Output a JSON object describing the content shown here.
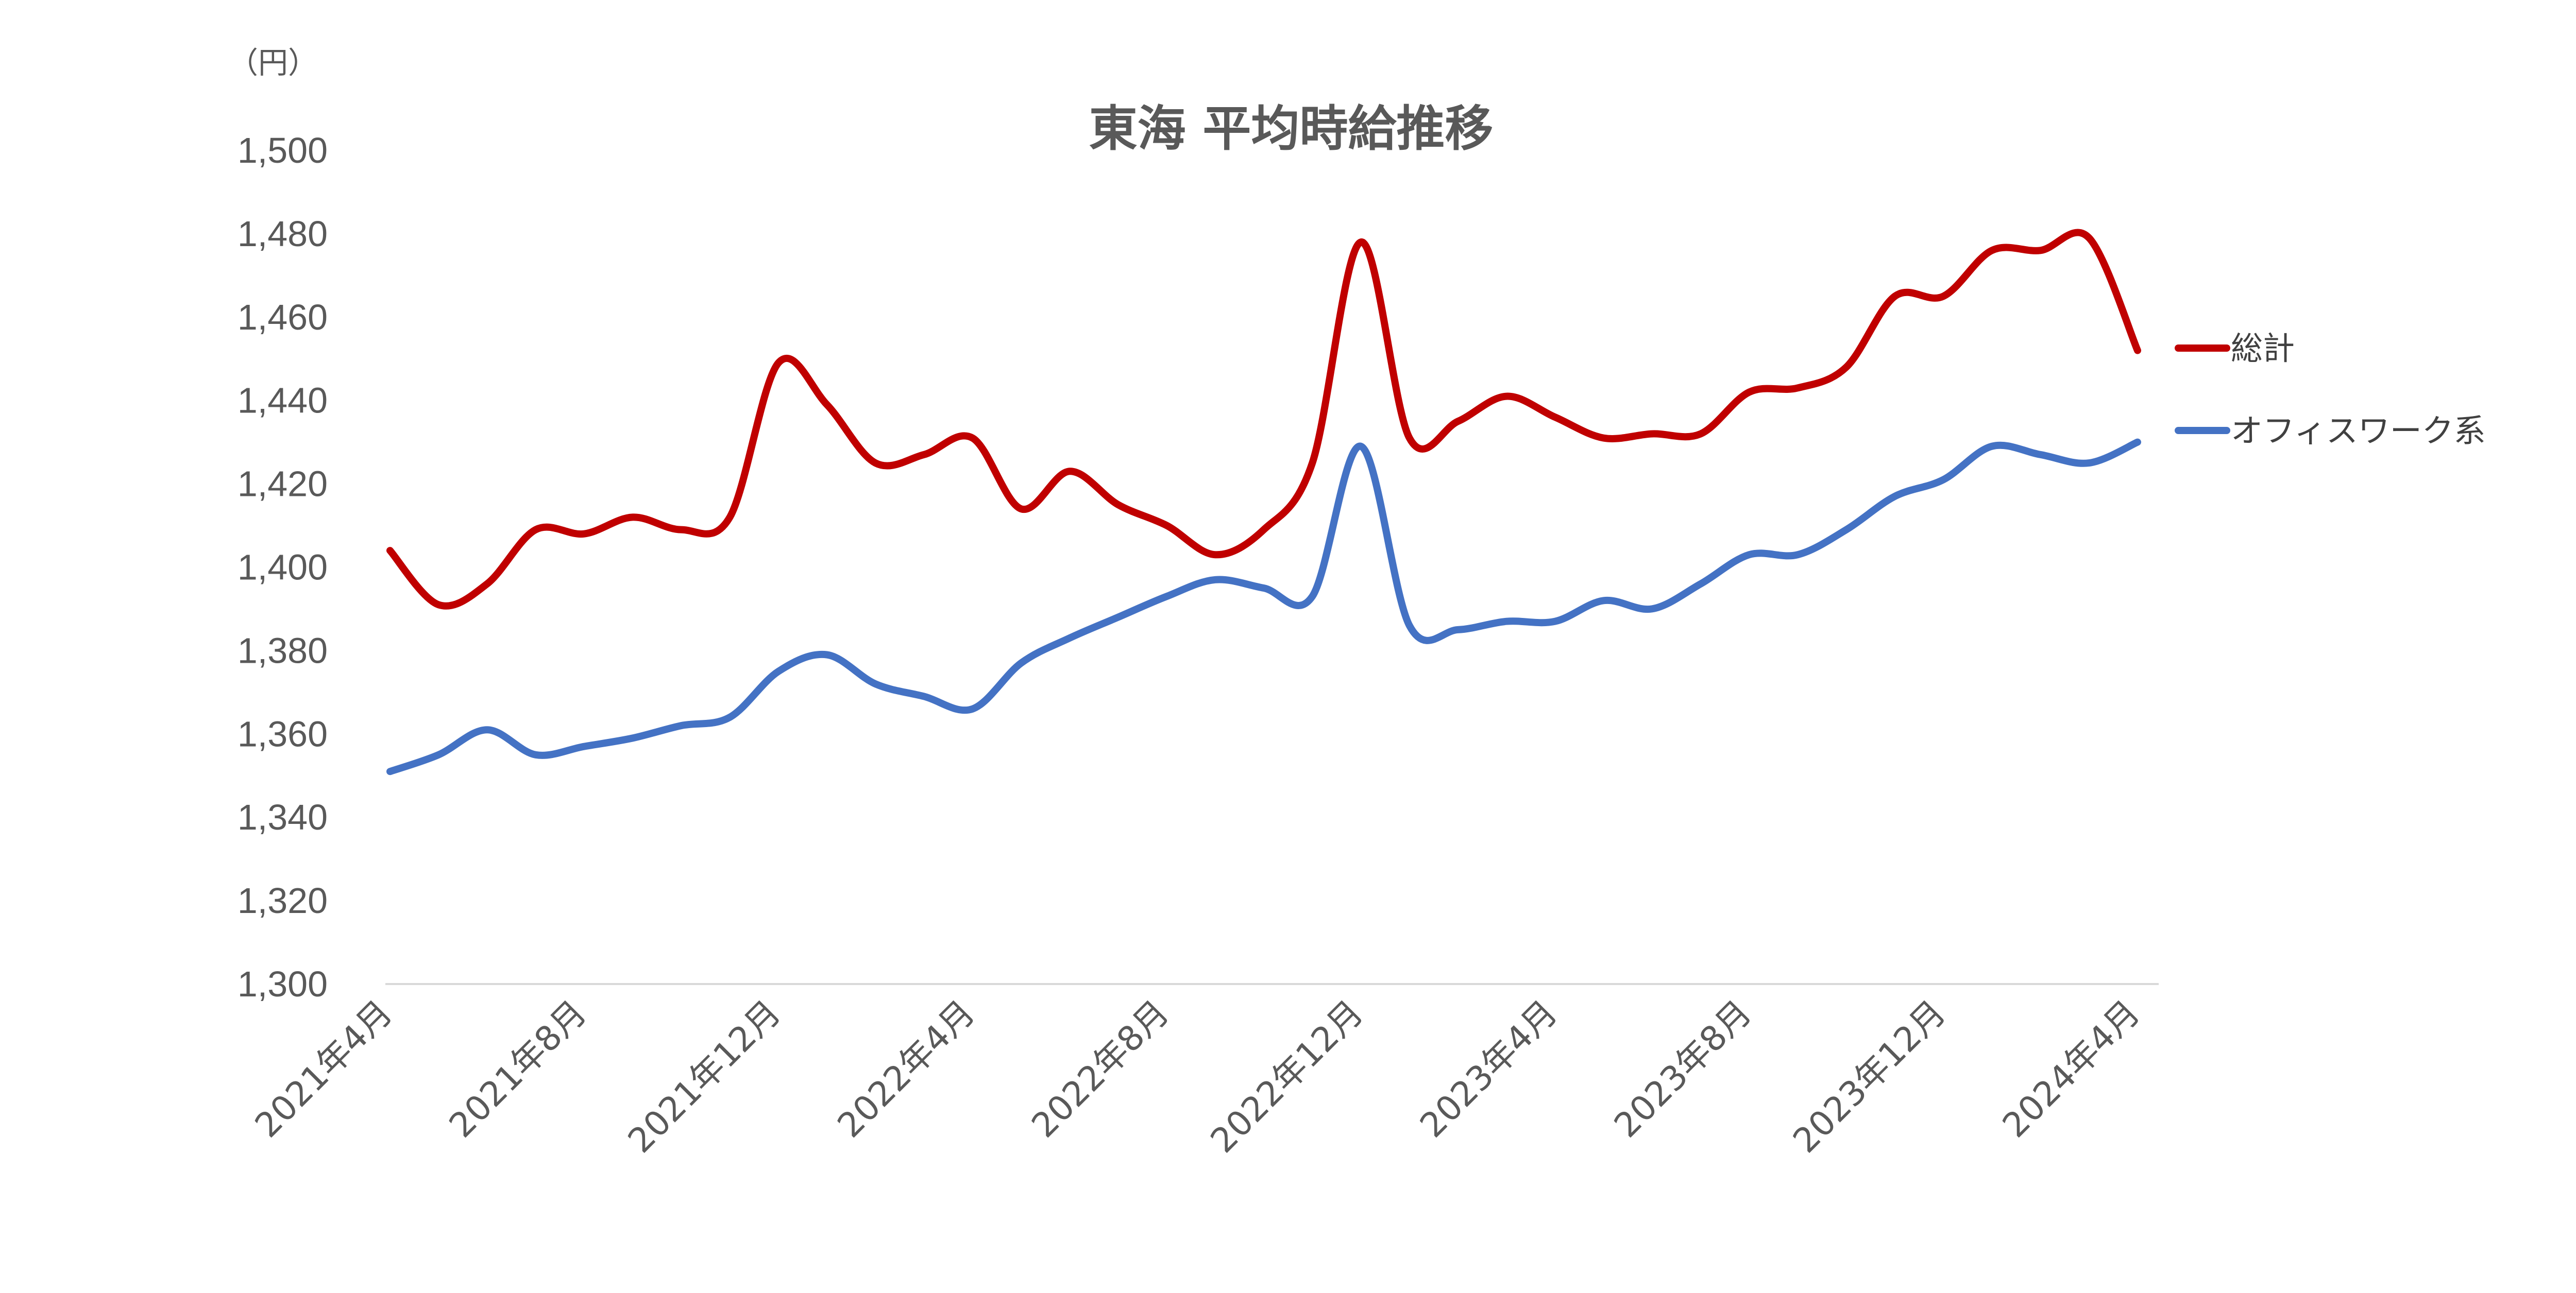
{
  "chart_data": {
    "type": "line",
    "title": "東海 平均時給推移",
    "unit_label": "（円）",
    "ylim": [
      1300,
      1500
    ],
    "yticks": [
      1300,
      1320,
      1340,
      1360,
      1380,
      1400,
      1420,
      1440,
      1460,
      1480,
      1500
    ],
    "ytick_labels": [
      "1,300",
      "1,320",
      "1,340",
      "1,360",
      "1,380",
      "1,400",
      "1,420",
      "1,440",
      "1,460",
      "1,480",
      "1,500"
    ],
    "x": [
      "2021年4月",
      "2021年5月",
      "2021年6月",
      "2021年7月",
      "2021年8月",
      "2021年9月",
      "2021年10月",
      "2021年11月",
      "2021年12月",
      "2022年1月",
      "2022年2月",
      "2022年3月",
      "2022年4月",
      "2022年5月",
      "2022年6月",
      "2022年7月",
      "2022年8月",
      "2022年9月",
      "2022年10月",
      "2022年11月",
      "2022年12月",
      "2023年1月",
      "2023年2月",
      "2023年3月",
      "2023年4月",
      "2023年5月",
      "2023年6月",
      "2023年7月",
      "2023年8月",
      "2023年9月",
      "2023年10月",
      "2023年11月",
      "2023年12月",
      "2024年1月",
      "2024年2月",
      "2024年3月",
      "2024年4月"
    ],
    "xtick_labels": [
      "2021年4月",
      "2021年8月",
      "2021年12月",
      "2022年4月",
      "2022年8月",
      "2022年12月",
      "2023年4月",
      "2023年8月",
      "2023年12月",
      "2024年4月"
    ],
    "xtick_indices": [
      0,
      4,
      8,
      12,
      16,
      20,
      24,
      28,
      32,
      36
    ],
    "grid": false,
    "legend_position": "right",
    "series": [
      {
        "name": "総計",
        "color": "#c00000",
        "values": [
          1404,
          1391,
          1396,
          1409,
          1408,
          1412,
          1409,
          1412,
          1449,
          1439,
          1425,
          1427,
          1431,
          1414,
          1423,
          1415,
          1410,
          1403,
          1409,
          1425,
          1478,
          1431,
          1435,
          1441,
          1436,
          1431,
          1432,
          1432,
          1442,
          1443,
          1448,
          1465,
          1465,
          1476,
          1476,
          1479,
          1452
        ]
      },
      {
        "name": "オフィスワーク系",
        "color": "#4472c4",
        "values": [
          1351,
          1355,
          1361,
          1355,
          1357,
          1359,
          1362,
          1364,
          1375,
          1379,
          1372,
          1369,
          1366,
          1377,
          1383,
          1388,
          1393,
          1397,
          1395,
          1393,
          1429,
          1386,
          1385,
          1387,
          1387,
          1392,
          1390,
          1396,
          1403,
          1403,
          1409,
          1417,
          1421,
          1429,
          1427,
          1425,
          1430
        ]
      }
    ]
  }
}
